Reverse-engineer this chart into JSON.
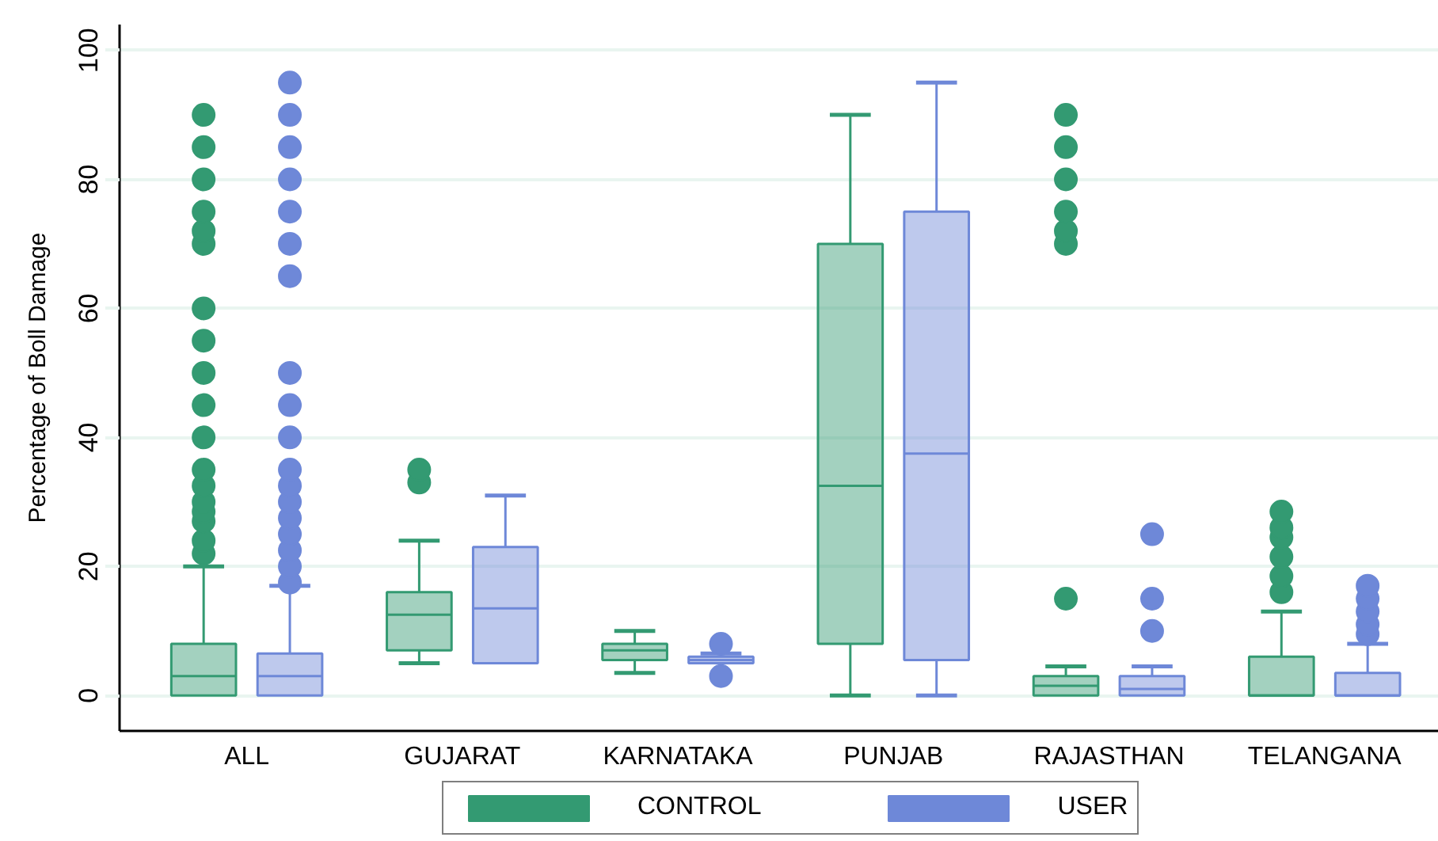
{
  "chart_data": {
    "type": "box",
    "categories": [
      "ALL",
      "GUJARAT",
      "KARNATAKA",
      "PUNJAB",
      "RAJASTHAN",
      "TELANGANA"
    ],
    "ylabel": "Percentage of Boll Damage",
    "ylim": [
      -5.5,
      104
    ],
    "yticks": [
      0,
      20,
      40,
      60,
      80,
      100
    ],
    "grid": "y",
    "legend": "bottom",
    "series": [
      {
        "name": "CONTROL",
        "color": "#339a72",
        "boxes": [
          {
            "low": 0,
            "q1": 0,
            "median": 3,
            "q3": 8,
            "high": 20,
            "outliers": [
              22,
              24,
              27,
              28.5,
              30,
              32.5,
              35,
              40,
              45,
              50,
              55,
              60,
              70,
              72,
              75,
              80,
              85,
              90
            ]
          },
          {
            "low": 5,
            "q1": 7,
            "median": 12.5,
            "q3": 16,
            "high": 24,
            "outliers": [
              33,
              35
            ]
          },
          {
            "low": 3.5,
            "q1": 5.5,
            "median": 7,
            "q3": 8,
            "high": 10
          },
          {
            "low": 0,
            "q1": 8,
            "median": 32.5,
            "q3": 70,
            "high": 90
          },
          {
            "low": 0,
            "q1": 0,
            "median": 1.5,
            "q3": 3,
            "high": 4.5,
            "outliers": [
              15,
              70,
              72,
              75,
              80,
              85,
              90
            ]
          },
          {
            "low": 0,
            "q1": 0,
            "median": 0,
            "q3": 6,
            "high": 13,
            "outliers": [
              16,
              18.5,
              21.5,
              24.5,
              26,
              28.5
            ]
          }
        ]
      },
      {
        "name": "USER",
        "color": "#6e88d8",
        "boxes": [
          {
            "low": 0,
            "q1": 0,
            "median": 3,
            "q3": 6.5,
            "high": 17,
            "outliers": [
              17.5,
              20,
              22.5,
              25,
              27.5,
              30,
              32.5,
              35,
              40,
              45,
              50,
              65,
              70,
              75,
              80,
              85,
              90,
              95
            ]
          },
          {
            "low": 5,
            "q1": 5,
            "median": 13.5,
            "q3": 23,
            "high": 31
          },
          {
            "low": 5,
            "q1": 5,
            "median": 5.5,
            "q3": 6,
            "high": 6.5,
            "outliers": [
              3,
              8
            ]
          },
          {
            "low": 0,
            "q1": 5.5,
            "median": 37.5,
            "q3": 75,
            "high": 95
          },
          {
            "low": 0,
            "q1": 0,
            "median": 1,
            "q3": 3,
            "high": 4.5,
            "outliers": [
              10,
              15,
              25
            ]
          },
          {
            "low": 0,
            "q1": 0,
            "median": 0,
            "q3": 3.5,
            "high": 8,
            "outliers": [
              9.5,
              11,
              13,
              15,
              17
            ]
          }
        ]
      }
    ]
  }
}
